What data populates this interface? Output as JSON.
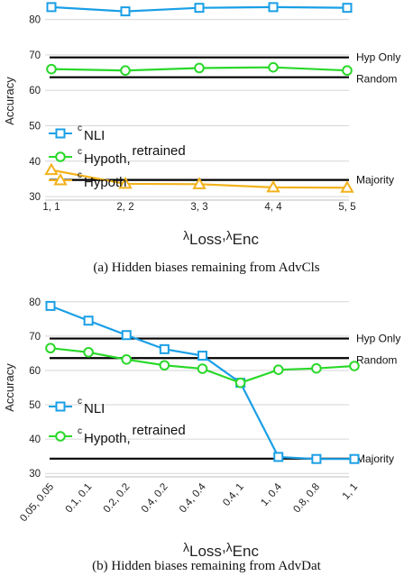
{
  "chart_data": [
    {
      "type": "line",
      "caption": "(a) Hidden biases remaining from AdvCls",
      "xlabel": {
        "sym1": "λ",
        "sub1": "Loss",
        "sep": ",",
        "sym2": "λ",
        "sub2": "Enc"
      },
      "ylabel": "Accuracy",
      "categories": [
        "1, 1",
        "2, 2",
        "3, 3",
        "4, 4",
        "5, 5"
      ],
      "yticks": [
        30,
        40,
        50,
        60,
        70,
        80
      ],
      "ylim": [
        29,
        85
      ],
      "grid": "horizontal",
      "legend_position": "left",
      "series": [
        {
          "name_sup": "c",
          "name_main": "NLI",
          "name_tail": "",
          "color": "#1a9fe6",
          "marker": "square",
          "values": [
            83.5,
            82.3,
            83.3,
            83.5,
            83.3
          ]
        },
        {
          "name_sup": "c",
          "name_main": "Hypoth",
          "name_tail": "retrained",
          "color": "#2ad82a",
          "marker": "circle",
          "values": [
            66.0,
            65.6,
            66.3,
            66.5,
            65.6
          ]
        },
        {
          "name_sup": "c",
          "name_main": "Hypoth",
          "name_tail": "",
          "color": "#f2b21c",
          "marker": "triangle",
          "values": [
            37.5,
            33.6,
            33.5,
            32.6,
            32.5
          ]
        }
      ],
      "reference_lines": [
        {
          "label": "Hyp Only",
          "value": 69.3
        },
        {
          "label": "Random",
          "value": 63.7
        },
        {
          "label": "Majority",
          "value": 34.7
        }
      ]
    },
    {
      "type": "line",
      "caption": "(b) Hidden biases remaining from AdvDat",
      "xlabel": {
        "sym1": "λ",
        "sub1": "Loss",
        "sep": ",",
        "sym2": "λ",
        "sub2": "Enc"
      },
      "ylabel": "Accuracy",
      "categories": [
        "0.05, 0.05",
        "0.1, 0.1",
        "0.2, 0.2",
        "0.4, 0.2",
        "0.4, 0.4",
        "0.4, 1",
        "1, 0.4",
        "0.8, 0.8",
        "1, 1"
      ],
      "yticks": [
        30,
        40,
        50,
        60,
        70,
        80
      ],
      "ylim": [
        29,
        81
      ],
      "grid": "horizontal",
      "legend_position": "left",
      "series": [
        {
          "name_sup": "c",
          "name_main": "NLI",
          "name_tail": "",
          "color": "#1a9fe6",
          "marker": "square",
          "values": [
            78.8,
            74.5,
            70.3,
            66.2,
            64.3,
            56.4,
            34.8,
            34.2,
            34.2
          ]
        },
        {
          "name_sup": "c",
          "name_main": "Hypoth",
          "name_tail": "retrained",
          "color": "#2ad82a",
          "marker": "circle",
          "values": [
            66.5,
            65.3,
            63.2,
            61.5,
            60.5,
            56.4,
            60.2,
            60.6,
            61.3
          ]
        }
      ],
      "reference_lines": [
        {
          "label": "Hyp Only",
          "value": 69.3
        },
        {
          "label": "Random",
          "value": 63.6
        },
        {
          "label": "Majority",
          "value": 34.3
        }
      ]
    }
  ]
}
